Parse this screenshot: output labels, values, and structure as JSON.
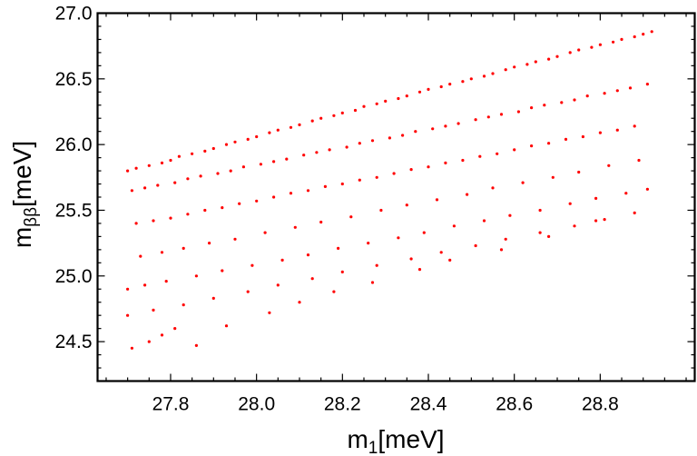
{
  "chart_data": {
    "type": "scatter",
    "xlabel": "m1[meV]",
    "xlabel_parts": {
      "main": "m",
      "sub": "1",
      "unit": "[meV]"
    },
    "ylabel": "mββ[meV]",
    "ylabel_parts": {
      "main": "m",
      "sub": "ββ",
      "unit": "[meV]"
    },
    "xlim": [
      27.63,
      29.02
    ],
    "ylim": [
      24.2,
      27.0
    ],
    "x_ticks": [
      27.8,
      28.0,
      28.2,
      28.4,
      28.6,
      28.8
    ],
    "x_tick_labels": [
      "27.8",
      "28.0",
      "28.2",
      "28.4",
      "28.6",
      "28.8"
    ],
    "y_ticks": [
      24.5,
      25.0,
      25.5,
      26.0,
      26.5,
      27.0
    ],
    "y_tick_labels": [
      "24.5",
      "25.0",
      "25.5",
      "26.0",
      "26.5",
      "27.0"
    ],
    "grid": false,
    "marker_color": "#ff0000",
    "frame_color": "#000000",
    "x": [
      27.7,
      27.72,
      27.75,
      27.78,
      27.8,
      27.82,
      27.85,
      27.88,
      27.9,
      27.93,
      27.95,
      27.98,
      28.0,
      28.03,
      28.05,
      28.08,
      28.1,
      28.13,
      28.15,
      28.18,
      28.2,
      28.23,
      28.25,
      28.28,
      28.3,
      28.33,
      28.35,
      28.38,
      28.4,
      28.43,
      28.45,
      28.48,
      28.5,
      28.53,
      28.55,
      28.58,
      28.6,
      28.63,
      28.65,
      28.68,
      28.7,
      28.73,
      28.75,
      28.78,
      28.8,
      28.83,
      28.85,
      28.88,
      28.9,
      28.92,
      27.71,
      27.74,
      27.77,
      27.81,
      27.84,
      27.87,
      27.91,
      27.94,
      27.97,
      28.01,
      28.04,
      28.07,
      28.11,
      28.14,
      28.17,
      28.21,
      28.24,
      28.27,
      28.31,
      28.34,
      28.37,
      28.41,
      28.44,
      28.47,
      28.51,
      28.54,
      28.57,
      28.61,
      28.64,
      28.67,
      28.71,
      28.74,
      28.77,
      28.81,
      28.84,
      28.87,
      28.91,
      27.72,
      27.76,
      27.8,
      27.84,
      27.88,
      27.92,
      27.96,
      28.0,
      28.04,
      28.08,
      28.12,
      28.16,
      28.2,
      28.24,
      28.28,
      28.32,
      28.36,
      28.4,
      28.44,
      28.48,
      28.52,
      28.56,
      28.6,
      28.64,
      28.68,
      28.72,
      28.76,
      28.8,
      28.84,
      28.88,
      27.73,
      27.78,
      27.83,
      27.89,
      27.95,
      28.02,
      28.09,
      28.15,
      28.22,
      28.29,
      28.35,
      28.42,
      28.49,
      28.55,
      28.62,
      28.69,
      28.75,
      28.82,
      28.89,
      27.7,
      27.74,
      27.79,
      27.86,
      27.92,
      27.99,
      28.06,
      28.12,
      28.19,
      28.26,
      28.33,
      28.39,
      28.46,
      28.53,
      28.59,
      28.66,
      28.73,
      28.79,
      28.86,
      28.91,
      27.7,
      27.76,
      27.83,
      27.9,
      27.98,
      28.05,
      28.13,
      28.2,
      28.28,
      28.36,
      28.43,
      28.51,
      28.58,
      28.66,
      28.74,
      28.81,
      28.88,
      27.71,
      27.75,
      27.78,
      27.81,
      27.86,
      27.93,
      28.03,
      28.1,
      28.18,
      28.27,
      28.38,
      28.45,
      28.57,
      28.68,
      28.79
    ],
    "y": [
      25.8,
      25.82,
      25.84,
      25.86,
      25.88,
      25.91,
      25.93,
      25.95,
      25.97,
      26.0,
      26.02,
      26.04,
      26.06,
      26.09,
      26.11,
      26.13,
      26.15,
      26.18,
      26.2,
      26.22,
      26.24,
      26.26,
      26.29,
      26.31,
      26.33,
      26.35,
      26.37,
      26.4,
      26.42,
      26.44,
      26.46,
      26.48,
      26.5,
      26.52,
      26.54,
      26.57,
      26.59,
      26.61,
      26.63,
      26.65,
      26.67,
      26.7,
      26.72,
      26.74,
      26.76,
      26.78,
      26.8,
      26.82,
      26.84,
      26.86,
      25.65,
      25.67,
      25.69,
      25.71,
      25.74,
      25.76,
      25.78,
      25.8,
      25.83,
      25.85,
      25.87,
      25.89,
      25.92,
      25.94,
      25.96,
      25.98,
      26.01,
      26.03,
      26.05,
      26.07,
      26.1,
      26.12,
      26.14,
      26.16,
      26.19,
      26.21,
      26.23,
      26.25,
      26.28,
      26.3,
      26.32,
      26.34,
      26.37,
      26.39,
      26.41,
      26.43,
      26.46,
      25.4,
      25.42,
      25.44,
      25.47,
      25.5,
      25.52,
      25.55,
      25.57,
      25.6,
      25.63,
      25.65,
      25.68,
      25.7,
      25.73,
      25.75,
      25.78,
      25.81,
      25.83,
      25.86,
      25.88,
      25.91,
      25.93,
      25.96,
      25.99,
      26.01,
      26.04,
      26.06,
      26.09,
      26.11,
      26.14,
      25.15,
      25.18,
      25.21,
      25.25,
      25.28,
      25.33,
      25.37,
      25.41,
      25.45,
      25.5,
      25.54,
      25.58,
      25.62,
      25.67,
      25.71,
      25.75,
      25.79,
      25.84,
      25.88,
      24.9,
      24.93,
      24.96,
      25.0,
      25.04,
      25.08,
      25.12,
      25.16,
      25.21,
      25.25,
      25.29,
      25.33,
      25.38,
      25.42,
      25.46,
      25.5,
      25.55,
      25.59,
      25.63,
      25.66,
      24.7,
      24.74,
      24.78,
      24.83,
      24.88,
      24.93,
      24.98,
      25.03,
      25.08,
      25.13,
      25.18,
      25.23,
      25.28,
      25.33,
      25.38,
      25.43,
      25.48,
      24.45,
      24.5,
      24.55,
      24.6,
      24.47,
      24.62,
      24.72,
      24.8,
      24.88,
      24.95,
      25.05,
      25.12,
      25.2,
      25.3,
      25.42
    ]
  }
}
